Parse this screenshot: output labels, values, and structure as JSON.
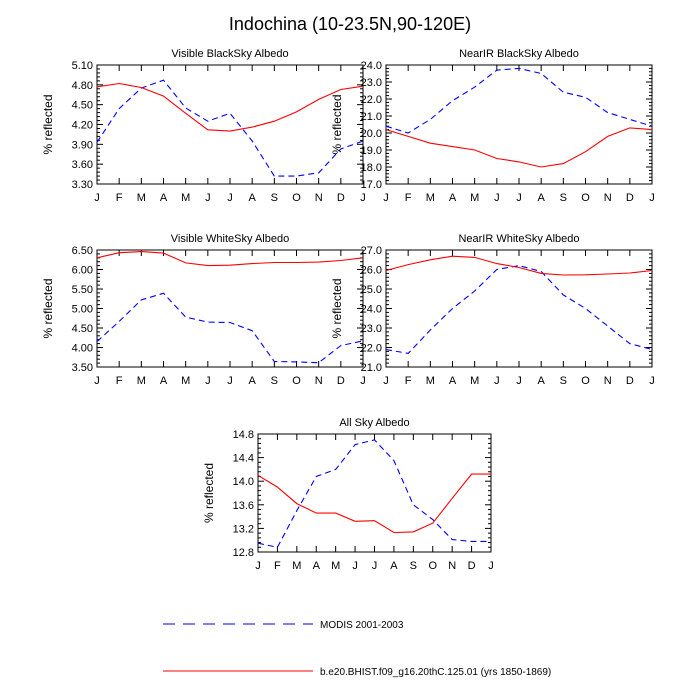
{
  "title": "Indochina (10-23.5N,90-120E)",
  "colors": {
    "modis": "#0000ff",
    "model": "#ff0000",
    "axis": "#000000"
  },
  "legend": {
    "placement": "bottom",
    "entries": [
      {
        "label": "MODIS 2001-2003",
        "color": "#0000ff",
        "style": "dashed"
      },
      {
        "label": "b.e20.BHIST.f09_g16.20thC.125.01 (yrs 1850-1869)",
        "color": "#ff0000",
        "style": "solid"
      }
    ]
  },
  "chart_data": [
    {
      "type": "line",
      "title": "Visible BlackSky Albedo",
      "ylabel": "% reflected",
      "categories": [
        "J",
        "F",
        "M",
        "A",
        "M",
        "J",
        "J",
        "A",
        "S",
        "O",
        "N",
        "D",
        "J"
      ],
      "ylim": [
        3.3,
        5.1
      ],
      "yticks": [
        "3.30",
        "3.60",
        "3.90",
        "4.20",
        "4.50",
        "4.80",
        "5.10"
      ],
      "series": [
        {
          "name": "MODIS 2001-2003",
          "values": [
            3.93,
            4.44,
            4.75,
            4.87,
            4.45,
            4.25,
            4.37,
            3.95,
            3.42,
            3.42,
            3.47,
            3.83,
            3.95
          ]
        },
        {
          "name": "b.e20.BHIST.f09_g16.20thC.125.01 (yrs 1850-1869)",
          "values": [
            4.77,
            4.82,
            4.76,
            4.63,
            4.37,
            4.12,
            4.1,
            4.16,
            4.25,
            4.39,
            4.58,
            4.73,
            4.78
          ]
        }
      ]
    },
    {
      "type": "line",
      "title": "NearIR BlackSky Albedo",
      "ylabel": "% reflected",
      "categories": [
        "J",
        "F",
        "M",
        "A",
        "M",
        "J",
        "J",
        "A",
        "S",
        "O",
        "N",
        "D",
        "J"
      ],
      "ylim": [
        17.0,
        24.0
      ],
      "yticks": [
        "17.0",
        "18.0",
        "19.0",
        "20.0",
        "21.0",
        "22.0",
        "23.0",
        "24.0"
      ],
      "series": [
        {
          "name": "MODIS 2001-2003",
          "values": [
            20.4,
            20.0,
            20.8,
            21.9,
            22.7,
            23.7,
            23.8,
            23.5,
            22.4,
            22.1,
            21.2,
            20.8,
            20.4
          ]
        },
        {
          "name": "b.e20.BHIST.f09_g16.20thC.125.01 (yrs 1850-1869)",
          "values": [
            20.2,
            19.8,
            19.4,
            19.2,
            19.0,
            18.5,
            18.3,
            18.0,
            18.2,
            18.9,
            19.8,
            20.3,
            20.2
          ]
        }
      ]
    },
    {
      "type": "line",
      "title": "Visible WhiteSky Albedo",
      "ylabel": "% reflected",
      "categories": [
        "J",
        "F",
        "M",
        "A",
        "M",
        "J",
        "J",
        "A",
        "S",
        "O",
        "N",
        "D",
        "J"
      ],
      "ylim": [
        3.5,
        6.5
      ],
      "yticks": [
        "3.50",
        "4.00",
        "4.50",
        "5.00",
        "5.50",
        "6.00",
        "6.50"
      ],
      "series": [
        {
          "name": "MODIS 2001-2003",
          "values": [
            4.15,
            4.67,
            5.22,
            5.39,
            4.78,
            4.65,
            4.64,
            4.43,
            3.64,
            3.63,
            3.61,
            4.05,
            4.17
          ]
        },
        {
          "name": "b.e20.BHIST.f09_g16.20thC.125.01 (yrs 1850-1869)",
          "values": [
            6.3,
            6.43,
            6.46,
            6.42,
            6.17,
            6.1,
            6.11,
            6.15,
            6.18,
            6.18,
            6.19,
            6.23,
            6.3
          ]
        }
      ]
    },
    {
      "type": "line",
      "title": "NearIR WhiteSky Albedo",
      "ylabel": "% reflected",
      "categories": [
        "J",
        "F",
        "M",
        "A",
        "M",
        "J",
        "J",
        "A",
        "S",
        "O",
        "N",
        "D",
        "J"
      ],
      "ylim": [
        21.0,
        27.0
      ],
      "yticks": [
        "21.0",
        "22.0",
        "23.0",
        "24.0",
        "25.0",
        "26.0",
        "27.0"
      ],
      "series": [
        {
          "name": "MODIS 2001-2003",
          "values": [
            21.9,
            21.7,
            22.9,
            24.0,
            24.9,
            26.0,
            26.2,
            25.9,
            24.7,
            24.0,
            23.1,
            22.2,
            21.9
          ]
        },
        {
          "name": "b.e20.BHIST.f09_g16.20thC.125.01 (yrs 1850-1869)",
          "values": [
            25.95,
            26.25,
            26.5,
            26.68,
            26.62,
            26.3,
            26.1,
            25.8,
            25.72,
            25.73,
            25.77,
            25.82,
            25.95
          ]
        }
      ]
    },
    {
      "type": "line",
      "title": "All Sky Albedo",
      "ylabel": "% reflected",
      "categories": [
        "J",
        "F",
        "M",
        "A",
        "M",
        "J",
        "J",
        "A",
        "S",
        "O",
        "N",
        "D",
        "J"
      ],
      "ylim": [
        12.8,
        14.8
      ],
      "yticks": [
        "12.8",
        "13.2",
        "13.6",
        "14.0",
        "14.4",
        "14.8"
      ],
      "series": [
        {
          "name": "MODIS 2001-2003",
          "values": [
            12.95,
            12.88,
            13.5,
            14.08,
            14.2,
            14.62,
            14.7,
            14.35,
            13.6,
            13.35,
            13.01,
            12.98,
            12.98
          ]
        },
        {
          "name": "b.e20.BHIST.f09_g16.20thC.125.01 (yrs 1850-1869)",
          "values": [
            14.1,
            13.9,
            13.62,
            13.46,
            13.46,
            13.32,
            13.33,
            13.13,
            13.14,
            13.29,
            13.71,
            14.12,
            14.12
          ]
        }
      ]
    }
  ]
}
